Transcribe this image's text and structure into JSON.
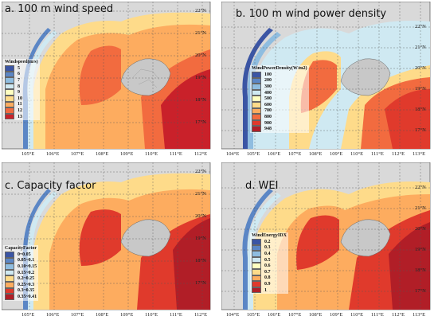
{
  "panels": [
    {
      "id": "a",
      "title": "a. 100 m wind speed",
      "legend_title": "Windspeed(m/s)",
      "legend_items": [
        {
          "label": "5",
          "color": "#3b55a4"
        },
        {
          "label": "6",
          "color": "#5b86c5"
        },
        {
          "label": "7",
          "color": "#8fbde0"
        },
        {
          "label": "8",
          "color": "#cfe9f2"
        },
        {
          "label": "9",
          "color": "#ffffc0"
        },
        {
          "label": "10",
          "color": "#fedb8a"
        },
        {
          "label": "11",
          "color": "#fdac5f"
        },
        {
          "label": "12",
          "color": "#f26b3f"
        },
        {
          "label": "13",
          "color": "#c9212a"
        }
      ],
      "x_ticks": [
        "105°E",
        "106°E",
        "107°E",
        "108°E",
        "109°E",
        "110°E",
        "111°E",
        "112°E"
      ],
      "y_ticks": [
        "22°N",
        "21°N",
        "20°N",
        "19°N",
        "18°N",
        "17°N"
      ]
    },
    {
      "id": "b",
      "title": "b. 100 m wind power density",
      "legend_title": "WindPowerDensity(W/m2)",
      "legend_items": [
        {
          "label": "100",
          "color": "#3b55a4"
        },
        {
          "label": "200",
          "color": "#5b86c5"
        },
        {
          "label": "300",
          "color": "#8fbde0"
        },
        {
          "label": "400",
          "color": "#cfe9f2"
        },
        {
          "label": "500",
          "color": "#ffffc0"
        },
        {
          "label": "600",
          "color": "#fedb8a"
        },
        {
          "label": "700",
          "color": "#fdac5f"
        },
        {
          "label": "800",
          "color": "#f26b3f"
        },
        {
          "label": "900",
          "color": "#e03a2c"
        },
        {
          "label": "948",
          "color": "#b11e27"
        }
      ],
      "x_ticks": [
        "104°E",
        "105°E",
        "106°E",
        "107°E",
        "108°E",
        "109°E",
        "110°E",
        "111°E",
        "112°E",
        "113°E"
      ],
      "y_ticks": [
        "22°N",
        "21°N",
        "20°N",
        "19°N",
        "18°N",
        "17°N"
      ]
    },
    {
      "id": "c",
      "title": "c. Capacity factor",
      "legend_title": "CapacityFactor",
      "legend_items": [
        {
          "label": "0~0.05",
          "color": "#3b55a4"
        },
        {
          "label": "0.05~0.1",
          "color": "#5b86c5"
        },
        {
          "label": "0.10~0.15",
          "color": "#8fbde0"
        },
        {
          "label": "0.15~0.2",
          "color": "#cfe9f2"
        },
        {
          "label": "0.2~0.25",
          "color": "#fedb8a"
        },
        {
          "label": "0.25~0.3",
          "color": "#fdac5f"
        },
        {
          "label": "0.3~0.35",
          "color": "#e03a2c"
        },
        {
          "label": "0.35~0.41",
          "color": "#b11e27"
        }
      ],
      "x_ticks": [
        "105°E",
        "106°E",
        "107°E",
        "108°E",
        "109°E",
        "110°E",
        "111°E",
        "112°E"
      ],
      "y_ticks": [
        "22°N",
        "21°N",
        "20°N",
        "19°N",
        "18°N",
        "17°N"
      ]
    },
    {
      "id": "d",
      "title": "d. WEI",
      "legend_title": "WindEnergyIDX",
      "legend_items": [
        {
          "label": "0.2",
          "color": "#3b55a4"
        },
        {
          "label": "0.3",
          "color": "#5b86c5"
        },
        {
          "label": "0.4",
          "color": "#8fbde0"
        },
        {
          "label": "0.5",
          "color": "#cfe9f2"
        },
        {
          "label": "0.6",
          "color": "#ffffc0"
        },
        {
          "label": "0.7",
          "color": "#fedb8a"
        },
        {
          "label": "0.8",
          "color": "#fdac5f"
        },
        {
          "label": "0.9",
          "color": "#e03a2c"
        },
        {
          "label": "1",
          "color": "#b11e27"
        }
      ],
      "x_ticks": [
        "104°E",
        "105°E",
        "106°E",
        "107°E",
        "108°E",
        "109°E",
        "110°E",
        "111°E",
        "112°E",
        "113°E"
      ],
      "y_ticks": [
        "22°N",
        "21°N",
        "20°N",
        "19°N",
        "18°N",
        "17°N"
      ]
    }
  ],
  "colors": {
    "land": "#d9d9d9",
    "island": "#c8c8c8",
    "grid": "#555555"
  }
}
